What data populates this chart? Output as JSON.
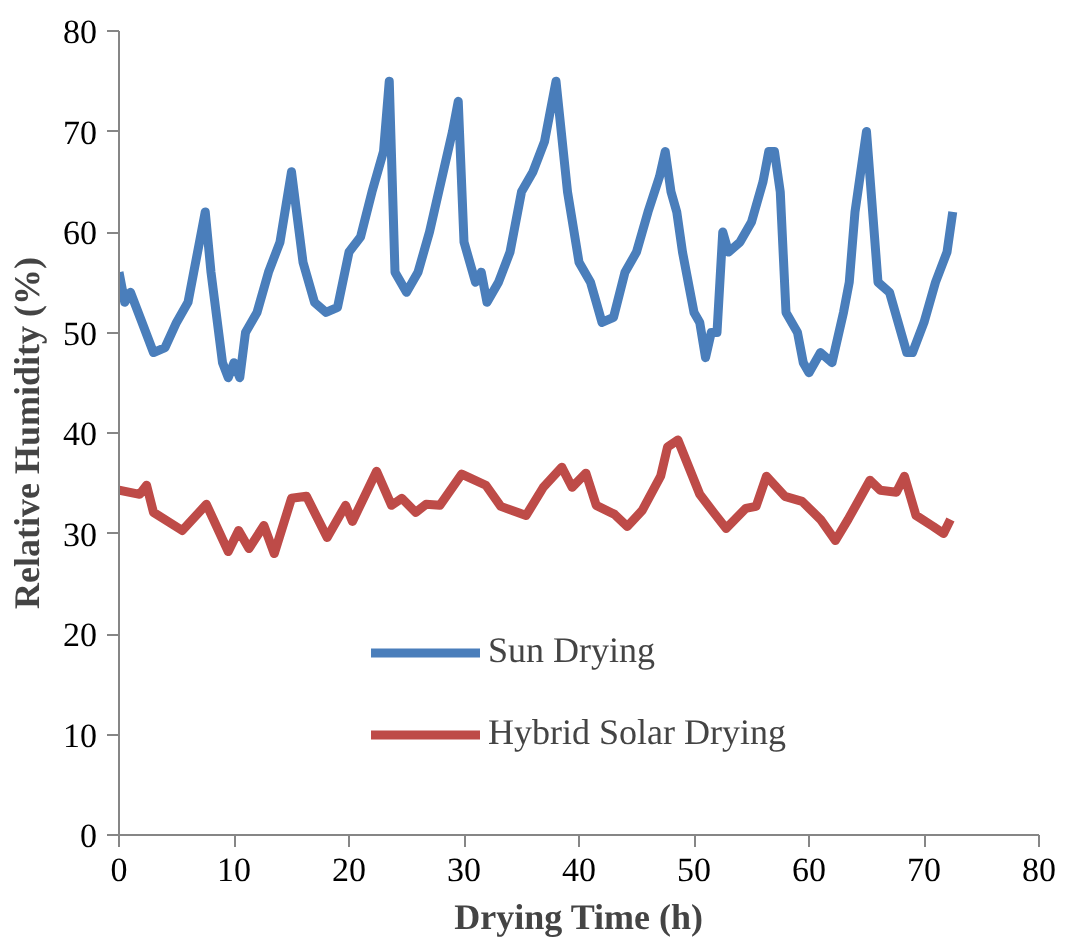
{
  "chart_data": {
    "type": "line",
    "xlabel": "Drying Time (h)",
    "ylabel": "Relative Humidity (%)",
    "xlim": [
      0,
      80
    ],
    "ylim": [
      0,
      80
    ],
    "xticks": [
      0,
      10,
      20,
      30,
      40,
      50,
      60,
      70,
      80
    ],
    "yticks": [
      0,
      10,
      20,
      30,
      40,
      50,
      60,
      70,
      80
    ],
    "grid": false,
    "legend": "bottom",
    "marker": "none",
    "line_style": "solid",
    "series": [
      {
        "name": "Sun Drying",
        "color": "#4a7ebb",
        "x": [
          0,
          0.5,
          1,
          2,
          3,
          4,
          5,
          6,
          6.5,
          7,
          7.5,
          8,
          9,
          9.5,
          10,
          10.5,
          11,
          12,
          13,
          14,
          15,
          16,
          17,
          18,
          19,
          20,
          21,
          22,
          23,
          23.5,
          24,
          25,
          26,
          27,
          28,
          29,
          29.5,
          30,
          31,
          31.5,
          32,
          33,
          34,
          35,
          36,
          37,
          38,
          39,
          40,
          41,
          41.5,
          42,
          43,
          44,
          45,
          46,
          47,
          47.5,
          48,
          48.5,
          49,
          50,
          50.5,
          51,
          51.5,
          52,
          52.5,
          53,
          54,
          55,
          56,
          56.5,
          57,
          57.5,
          58,
          59,
          59.5,
          60,
          61,
          62,
          63,
          63.5,
          64,
          64.5,
          65,
          66,
          67,
          68,
          68.5,
          69,
          70,
          71,
          72,
          72.5
        ],
        "values": [
          56,
          53,
          54,
          51,
          48,
          48.5,
          51,
          53,
          56,
          59,
          62,
          56,
          47,
          45.5,
          47,
          45.5,
          50,
          52,
          56,
          59,
          66,
          57,
          53,
          52,
          52.5,
          58,
          59.5,
          64,
          68,
          75,
          56,
          54,
          56,
          60,
          65,
          70,
          73,
          59,
          55,
          56,
          53,
          55,
          58,
          64,
          66,
          69,
          75,
          64,
          57,
          55,
          53,
          51,
          51.5,
          56,
          58,
          62,
          65.5,
          68,
          64,
          62,
          58,
          52,
          51,
          47.5,
          50,
          50,
          60,
          58,
          59,
          61,
          65,
          68,
          68,
          64,
          52,
          50,
          47,
          46,
          48,
          47,
          52,
          55,
          62,
          66,
          70,
          55,
          54,
          50,
          48,
          48,
          51,
          55,
          58,
          62
        ]
      },
      {
        "name": "Hybrid Solar Drying",
        "color": "#be4b48",
        "x": [
          0,
          1.8,
          2.4,
          3,
          5.5,
          7.6,
          9.5,
          10.4,
          11.3,
          12.6,
          13.5,
          15,
          16.3,
          18.1,
          19.7,
          20.3,
          22.4,
          23.7,
          24.6,
          25.8,
          26.7,
          27.9,
          29.8,
          31.9,
          33.2,
          35.4,
          36.9,
          38.5,
          39.4,
          40.6,
          41.5,
          43.1,
          44.2,
          45.5,
          47.1,
          47.7,
          48.6,
          50.5,
          51.7,
          52.8,
          54.5,
          55.4,
          56.3,
          57.9,
          59.4,
          61,
          62.3,
          63.4,
          65.3,
          66.2,
          67.6,
          68.3,
          69.3,
          70.8,
          71.7,
          72.3
        ],
        "values": [
          34.3,
          33.9,
          34.8,
          32.1,
          30.3,
          32.9,
          28.2,
          30.3,
          28.5,
          30.8,
          28,
          33.5,
          33.7,
          29.6,
          32.8,
          31.2,
          36.2,
          32.8,
          33.5,
          32.1,
          32.9,
          32.8,
          35.9,
          34.8,
          32.7,
          31.8,
          34.6,
          36.6,
          34.6,
          36,
          32.8,
          31.9,
          30.7,
          32.3,
          35.7,
          38.6,
          39.3,
          33.9,
          32.1,
          30.5,
          32.5,
          32.7,
          35.7,
          33.7,
          33.2,
          31.4,
          29.3,
          31.4,
          35.3,
          34.3,
          34.1,
          35.7,
          31.8,
          30.7,
          30,
          31.4
        ]
      }
    ]
  }
}
